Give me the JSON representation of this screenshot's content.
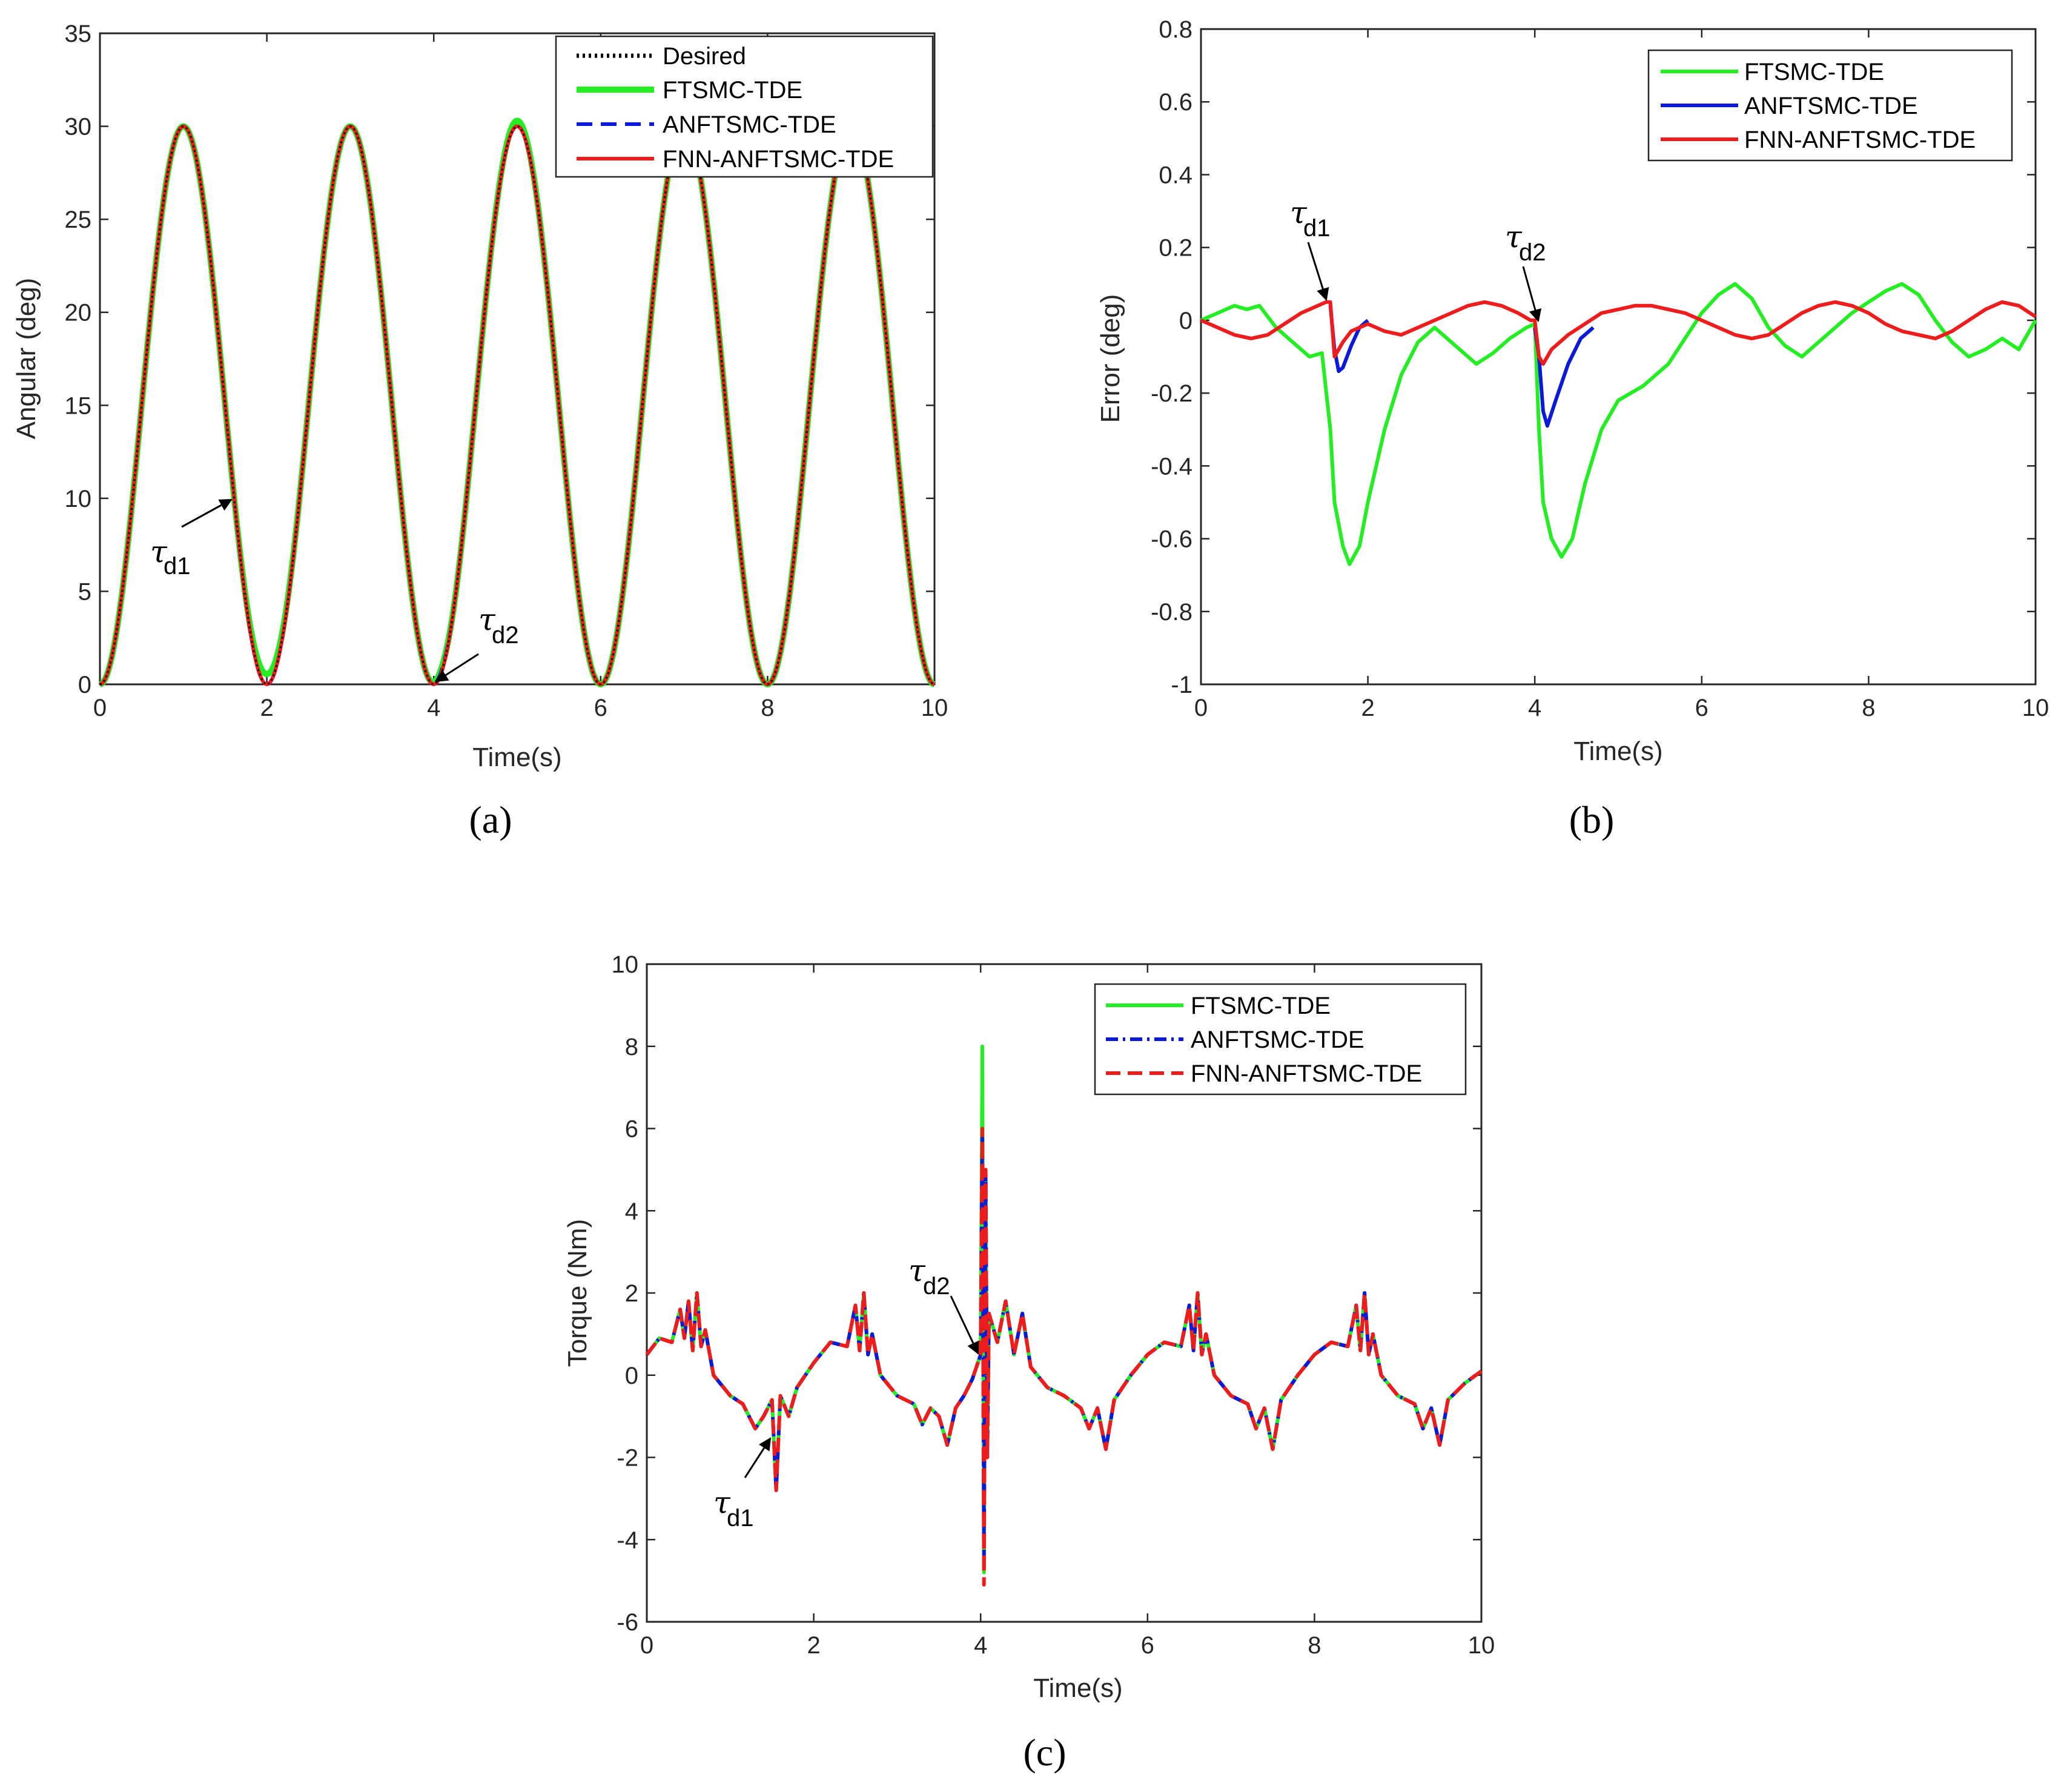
{
  "colors": {
    "desired": "#000000",
    "ftsmc": "#22ee22",
    "anftsmc": "#0a1ad8",
    "fnn": "#ee1c1c"
  },
  "chart_data": [
    {
      "id": "a",
      "type": "line",
      "caption": "(a)",
      "xlabel": "Time(s)",
      "ylabel": "Angular (deg)",
      "xlim": [
        0,
        10
      ],
      "ylim": [
        0,
        35
      ],
      "xticks": [
        "0",
        "2",
        "4",
        "6",
        "8",
        "10"
      ],
      "yticks": [
        "0",
        "5",
        "10",
        "15",
        "20",
        "25",
        "30",
        "35"
      ],
      "legend": "top-right",
      "series": [
        {
          "name": "Desired",
          "style": "dotted",
          "description": "15*(1-cos(pi*t)), peaks 30 at t=1,3,5,7,9"
        },
        {
          "name": "FTSMC-TDE",
          "style": "solid",
          "description": "tracks desired; min ~0.5 at t=2, peak ~30.3 at t=5"
        },
        {
          "name": "ANFTSMC-TDE",
          "style": "dashed"
        },
        {
          "name": "FNN-ANFTSMC-TDE",
          "style": "solid"
        }
      ],
      "annotations": [
        {
          "label": "τ",
          "sub": "d1",
          "t": 1.6,
          "value": 10
        },
        {
          "label": "τ",
          "sub": "d2",
          "t": 4.0,
          "value": 0
        }
      ]
    },
    {
      "id": "b",
      "type": "line",
      "caption": "(b)",
      "xlabel": "Time(s)",
      "ylabel": "Error (deg)",
      "xlim": [
        0,
        10
      ],
      "ylim": [
        -1,
        0.8
      ],
      "xticks": [
        "0",
        "2",
        "4",
        "6",
        "8",
        "10"
      ],
      "yticks": [
        "-1",
        "-0.8",
        "-0.6",
        "-0.4",
        "-0.2",
        "0",
        "0.2",
        "0.4",
        "0.6",
        "0.8"
      ],
      "legend": "top-right",
      "series": [
        {
          "name": "FTSMC-TDE",
          "style": "solid",
          "x": [
            0,
            0.2,
            0.4,
            0.55,
            0.7,
            0.9,
            1.1,
            1.3,
            1.45,
            1.55,
            1.6,
            1.7,
            1.78,
            1.9,
            2.0,
            2.2,
            2.4,
            2.6,
            2.8,
            3.0,
            3.3,
            3.5,
            3.7,
            3.9,
            4.0,
            4.05,
            4.1,
            4.2,
            4.32,
            4.45,
            4.6,
            4.8,
            5.0,
            5.3,
            5.6,
            5.8,
            6.0,
            6.2,
            6.4,
            6.6,
            6.8,
            7.0,
            7.2,
            7.4,
            7.6,
            7.8,
            8.0,
            8.2,
            8.4,
            8.6,
            8.8,
            9.0,
            9.2,
            9.4,
            9.6,
            9.8,
            10.0
          ],
          "values": [
            0,
            0.02,
            0.04,
            0.03,
            0.04,
            -0.02,
            -0.06,
            -0.1,
            -0.09,
            -0.3,
            -0.5,
            -0.62,
            -0.67,
            -0.62,
            -0.5,
            -0.3,
            -0.15,
            -0.06,
            -0.02,
            -0.06,
            -0.12,
            -0.09,
            -0.05,
            -0.02,
            -0.01,
            -0.3,
            -0.5,
            -0.6,
            -0.65,
            -0.6,
            -0.45,
            -0.3,
            -0.22,
            -0.18,
            -0.12,
            -0.05,
            0.02,
            0.07,
            0.1,
            0.06,
            -0.02,
            -0.07,
            -0.1,
            -0.06,
            -0.02,
            0.02,
            0.05,
            0.08,
            0.1,
            0.07,
            0.0,
            -0.06,
            -0.1,
            -0.08,
            -0.05,
            -0.08,
            0.0
          ]
        },
        {
          "name": "ANFTSMC-TDE",
          "style": "solid",
          "x": [
            1.55,
            1.6,
            1.65,
            1.7,
            1.8,
            1.9,
            2.0,
            4.0,
            4.05,
            4.1,
            4.15,
            4.25,
            4.4,
            4.55,
            4.7
          ],
          "values": [
            0.04,
            -0.08,
            -0.14,
            -0.13,
            -0.07,
            -0.02,
            0.0,
            -0.02,
            -0.1,
            -0.25,
            -0.29,
            -0.22,
            -0.12,
            -0.05,
            -0.02
          ]
        },
        {
          "name": "FNN-ANFTSMC-TDE",
          "style": "solid",
          "x": [
            0,
            0.2,
            0.4,
            0.6,
            0.8,
            1.0,
            1.2,
            1.4,
            1.5,
            1.55,
            1.6,
            1.7,
            1.8,
            2.0,
            2.2,
            2.4,
            2.6,
            2.8,
            3.0,
            3.2,
            3.4,
            3.6,
            3.8,
            3.95,
            4.0,
            4.05,
            4.1,
            4.2,
            4.4,
            4.6,
            4.8,
            5.0,
            5.2,
            5.4,
            5.6,
            5.8,
            6.0,
            6.2,
            6.4,
            6.6,
            6.8,
            7.0,
            7.2,
            7.4,
            7.6,
            7.8,
            8.0,
            8.2,
            8.4,
            8.6,
            8.8,
            9.0,
            9.2,
            9.4,
            9.6,
            9.8,
            10.0
          ],
          "values": [
            0,
            -0.02,
            -0.04,
            -0.05,
            -0.04,
            -0.01,
            0.02,
            0.04,
            0.05,
            0.05,
            -0.1,
            -0.06,
            -0.03,
            -0.01,
            -0.03,
            -0.04,
            -0.02,
            0.0,
            0.02,
            0.04,
            0.05,
            0.04,
            0.02,
            0.0,
            0.0,
            -0.1,
            -0.12,
            -0.08,
            -0.04,
            -0.01,
            0.02,
            0.03,
            0.04,
            0.04,
            0.03,
            0.02,
            0.0,
            -0.02,
            -0.04,
            -0.05,
            -0.04,
            -0.01,
            0.02,
            0.04,
            0.05,
            0.04,
            0.02,
            -0.01,
            -0.03,
            -0.04,
            -0.05,
            -0.03,
            0.0,
            0.03,
            0.05,
            0.04,
            0.01
          ]
        }
      ],
      "annotations": [
        {
          "label": "τ",
          "sub": "d1",
          "t": 1.55,
          "value": 0.05
        },
        {
          "label": "τ",
          "sub": "d2",
          "t": 4.0,
          "value": 0.0
        }
      ]
    },
    {
      "id": "c",
      "type": "line",
      "caption": "(c)",
      "xlabel": "Time(s)",
      "ylabel": "Torque (Nm)",
      "xlim": [
        0,
        10
      ],
      "ylim": [
        -6,
        10
      ],
      "xticks": [
        "0",
        "2",
        "4",
        "6",
        "8",
        "10"
      ],
      "yticks": [
        "-6",
        "-4",
        "-2",
        "0",
        "2",
        "4",
        "6",
        "8",
        "10"
      ],
      "legend": "top-right",
      "series": [
        {
          "name": "FTSMC-TDE",
          "style": "solid",
          "peak": 8.0,
          "min": -4.8
        },
        {
          "name": "ANFTSMC-TDE",
          "style": "dashdot",
          "peak": 6.0,
          "min": -4.6
        },
        {
          "name": "FNN-ANFTSMC-TDE",
          "style": "dashed",
          "peak": 6.0,
          "min": -5.1
        }
      ],
      "x": [
        0,
        0.15,
        0.3,
        0.4,
        0.45,
        0.5,
        0.55,
        0.6,
        0.65,
        0.7,
        0.8,
        1.0,
        1.15,
        1.3,
        1.4,
        1.5,
        1.55,
        1.6,
        1.7,
        1.8,
        2.0,
        2.2,
        2.4,
        2.5,
        2.55,
        2.6,
        2.65,
        2.7,
        2.8,
        3.0,
        3.2,
        3.3,
        3.4,
        3.5,
        3.6,
        3.7,
        3.8,
        3.9,
        4.0,
        4.02,
        4.04,
        4.06,
        4.08,
        4.1,
        4.2,
        4.3,
        4.4,
        4.5,
        4.6,
        4.8,
        5.0,
        5.2,
        5.3,
        5.4,
        5.5,
        5.6,
        5.8,
        6.0,
        6.2,
        6.4,
        6.5,
        6.55,
        6.6,
        6.65,
        6.7,
        6.8,
        7.0,
        7.2,
        7.3,
        7.4,
        7.5,
        7.6,
        7.8,
        8.0,
        8.2,
        8.4,
        8.5,
        8.55,
        8.6,
        8.65,
        8.7,
        8.8,
        9.0,
        9.2,
        9.3,
        9.4,
        9.5,
        9.6,
        9.8,
        10.0
      ],
      "values": [
        0.5,
        0.9,
        0.8,
        1.6,
        0.9,
        1.8,
        0.6,
        2.0,
        0.7,
        1.1,
        0.0,
        -0.5,
        -0.7,
        -1.3,
        -1.0,
        -0.6,
        -2.8,
        -0.5,
        -1.0,
        -0.3,
        0.3,
        0.8,
        0.7,
        1.7,
        0.6,
        2.0,
        0.5,
        1.0,
        0.0,
        -0.5,
        -0.7,
        -1.2,
        -0.8,
        -1.0,
        -1.7,
        -0.8,
        -0.5,
        -0.1,
        0.5,
        6.0,
        -4.5,
        5.0,
        -2.0,
        1.5,
        0.8,
        1.8,
        0.5,
        1.5,
        0.2,
        -0.3,
        -0.5,
        -0.8,
        -1.3,
        -0.8,
        -1.8,
        -0.6,
        0.0,
        0.5,
        0.8,
        0.7,
        1.7,
        0.6,
        2.0,
        0.5,
        1.0,
        0.0,
        -0.5,
        -0.7,
        -1.3,
        -0.8,
        -1.8,
        -0.6,
        0.0,
        0.5,
        0.8,
        0.7,
        1.7,
        0.6,
        2.0,
        0.5,
        1.0,
        0.0,
        -0.5,
        -0.7,
        -1.3,
        -0.8,
        -1.7,
        -0.6,
        -0.2,
        0.1
      ],
      "annotations": [
        {
          "label": "τ",
          "sub": "d1",
          "t": 1.45,
          "value": -1.5
        },
        {
          "label": "τ",
          "sub": "d2",
          "t": 4.0,
          "value": 0.4
        }
      ]
    }
  ]
}
